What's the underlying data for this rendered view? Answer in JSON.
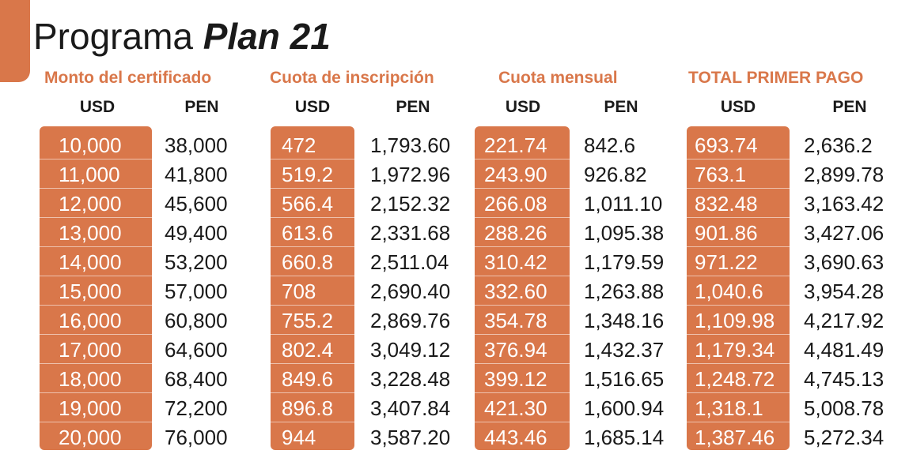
{
  "title": {
    "prefix": "Programa",
    "emphasis": "Plan 21"
  },
  "groups": [
    {
      "label": "Monto del certificado",
      "usd": "USD",
      "pen": "PEN"
    },
    {
      "label": "Cuota de inscripción",
      "usd": "USD",
      "pen": "PEN"
    },
    {
      "label": "Cuota mensual",
      "usd": "USD",
      "pen": "PEN"
    },
    {
      "label": "TOTAL PRIMER PAGO",
      "usd": "USD",
      "pen": "PEN"
    }
  ],
  "rows": [
    [
      "10,000",
      "38,000",
      "472",
      "1,793.60",
      "221.74",
      "842.6",
      "693.74",
      "2,636.2"
    ],
    [
      "11,000",
      "41,800",
      "519.2",
      "1,972.96",
      "243.90",
      "926.82",
      "763.1",
      "2,899.78"
    ],
    [
      "12,000",
      "45,600",
      "566.4",
      "2,152.32",
      "266.08",
      "1,011.10",
      "832.48",
      "3,163.42"
    ],
    [
      "13,000",
      "49,400",
      "613.6",
      "2,331.68",
      "288.26",
      "1,095.38",
      "901.86",
      "3,427.06"
    ],
    [
      "14,000",
      "53,200",
      "660.8",
      "2,511.04",
      "310.42",
      "1,179.59",
      "971.22",
      "3,690.63"
    ],
    [
      "15,000",
      "57,000",
      "708",
      "2,690.40",
      "332.60",
      "1,263.88",
      "1,040.6",
      "3,954.28"
    ],
    [
      "16,000",
      "60,800",
      "755.2",
      "2,869.76",
      "354.78",
      "1,348.16",
      "1,109.98",
      "4,217.92"
    ],
    [
      "17,000",
      "64,600",
      "802.4",
      "3,049.12",
      "376.94",
      "1,432.37",
      "1,179.34",
      "4,481.49"
    ],
    [
      "18,000",
      "68,400",
      "849.6",
      "3,228.48",
      "399.12",
      "1,516.65",
      "1,248.72",
      "4,745.13"
    ],
    [
      "19,000",
      "72,200",
      "896.8",
      "3,407.84",
      "421.30",
      "1,600.94",
      "1,318.1",
      "5,008.78"
    ],
    [
      "20,000",
      "76,000",
      "944",
      "3,587.20",
      "443.46",
      "1,685.14",
      "1,387.46",
      "5,272.34"
    ]
  ],
  "colors": {
    "accent": "#d9774a",
    "text": "#1a1a1a",
    "background": "#ffffff"
  }
}
